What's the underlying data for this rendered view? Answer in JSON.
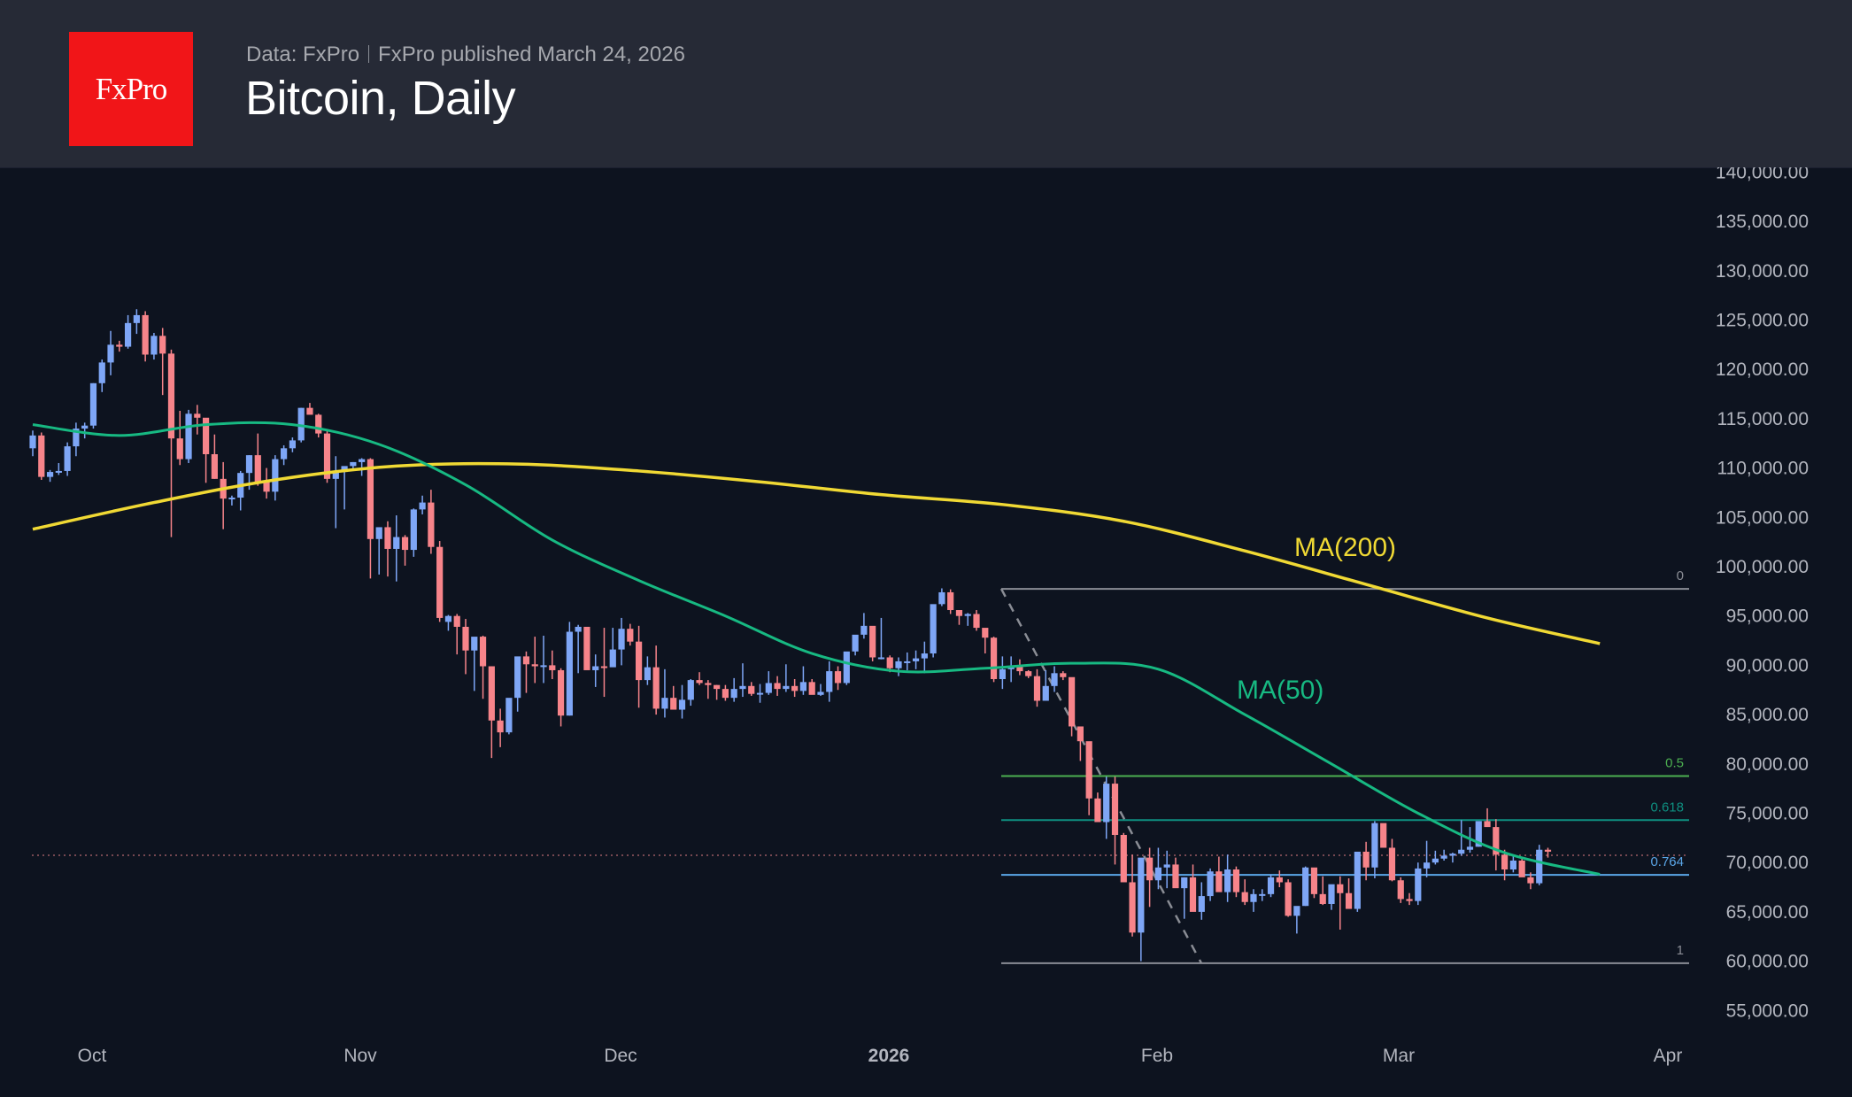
{
  "header": {
    "logo_text": "FxPro",
    "data_source": "Data: FxPro",
    "published": "FxPro published March 24, 2026",
    "title": "Bitcoin, Daily"
  },
  "colors": {
    "background": "#0d131f",
    "header_bg": "#262a36",
    "logo_red": "#f11518",
    "up_candle": "#7ea6f6",
    "down_candle": "#f7848a",
    "ma50": "#17b982",
    "ma200": "#f0d934",
    "fib_0": "#8a8d95",
    "fib_0_5": "#4caf50",
    "fib_0_618": "#0e8f80",
    "fib_0_764": "#5aa6e8",
    "fib_1": "#8a8d95",
    "axis_text": "#b2b5be"
  },
  "chart_data": {
    "type": "candlestick",
    "title": "Bitcoin, Daily",
    "xlabel": "",
    "ylabel": "",
    "x_ticks": [
      "Oct",
      "Nov",
      "Dec",
      "2026",
      "Feb",
      "Mar",
      "Apr"
    ],
    "y_ticks": [
      "55,000.00",
      "60,000.00",
      "65,000.00",
      "70,000.00",
      "75,000.00",
      "80,000.00",
      "85,000.00",
      "90,000.00",
      "95,000.00",
      "100,000.00",
      "105,000.00",
      "110,000.00",
      "115,000.00",
      "120,000.00",
      "125,000.00",
      "130,000.00",
      "135,000.00",
      "140,000.00"
    ],
    "ylim": [
      52000,
      140500
    ],
    "start_date": "2025-09-24",
    "end_date": "2026-03-24",
    "ohlc_note": "[open, high, low, close] per day in USD, starting 2025-09-24",
    "candles": [
      [
        112.0,
        113.8,
        111.2,
        113.3
      ],
      [
        113.3,
        113.6,
        108.8,
        109.1
      ],
      [
        109.1,
        109.8,
        108.6,
        109.6
      ],
      [
        109.6,
        110.5,
        109.3,
        109.7
      ],
      [
        109.7,
        112.6,
        109.2,
        112.2
      ],
      [
        112.2,
        114.6,
        111.2,
        114.0
      ],
      [
        114.0,
        114.6,
        113.0,
        114.3
      ],
      [
        114.3,
        118.6,
        114.0,
        118.6
      ],
      [
        118.6,
        121.0,
        117.7,
        120.7
      ],
      [
        120.7,
        123.9,
        119.4,
        122.5
      ],
      [
        122.5,
        122.9,
        121.8,
        122.3
      ],
      [
        122.3,
        125.5,
        122.1,
        124.7
      ],
      [
        124.7,
        126.1,
        123.6,
        125.5
      ],
      [
        125.5,
        125.9,
        120.8,
        121.5
      ],
      [
        121.5,
        123.7,
        121.0,
        123.4
      ],
      [
        123.4,
        124.2,
        117.4,
        121.6
      ],
      [
        121.6,
        122.0,
        103.0,
        113.0
      ],
      [
        113.0,
        115.8,
        110.3,
        110.9
      ],
      [
        110.9,
        115.9,
        110.5,
        115.5
      ],
      [
        115.5,
        116.4,
        113.4,
        115.1
      ],
      [
        115.1,
        115.0,
        108.5,
        111.4
      ],
      [
        111.4,
        113.4,
        108.9,
        108.9
      ],
      [
        108.9,
        110.6,
        103.8,
        106.9
      ],
      [
        106.9,
        107.2,
        106.2,
        107.0
      ],
      [
        107.0,
        109.7,
        105.7,
        109.5
      ],
      [
        109.5,
        111.3,
        107.8,
        111.3
      ],
      [
        111.3,
        113.5,
        108.2,
        108.6
      ],
      [
        108.6,
        110.0,
        106.9,
        107.6
      ],
      [
        107.6,
        111.3,
        106.7,
        110.9
      ],
      [
        110.9,
        112.3,
        110.3,
        112.0
      ],
      [
        112.0,
        113.1,
        111.6,
        112.8
      ],
      [
        112.8,
        116.1,
        112.6,
        116.1
      ],
      [
        116.1,
        116.6,
        115.6,
        115.4
      ],
      [
        115.4,
        115.5,
        113.1,
        113.5
      ],
      [
        113.5,
        113.8,
        108.5,
        108.9
      ],
      [
        108.9,
        111.2,
        103.9,
        109.6
      ],
      [
        109.6,
        110.0,
        105.8,
        110.2
      ],
      [
        110.2,
        110.6,
        109.9,
        110.6
      ],
      [
        110.6,
        111.0,
        109.2,
        110.9
      ],
      [
        110.9,
        111.0,
        98.8,
        102.8
      ],
      [
        102.8,
        102.9,
        99.2,
        104.0
      ],
      [
        104.0,
        104.6,
        99.0,
        101.8
      ],
      [
        101.8,
        105.2,
        98.5,
        103.0
      ],
      [
        103.0,
        103.2,
        100.1,
        101.7
      ],
      [
        101.7,
        105.9,
        101.0,
        105.8
      ],
      [
        105.8,
        107.2,
        105.3,
        106.5
      ],
      [
        106.5,
        107.8,
        101.3,
        102.0
      ],
      [
        102.0,
        102.6,
        94.4,
        94.8
      ],
      [
        94.4,
        95.1,
        93.5,
        95.0
      ],
      [
        95.0,
        95.2,
        91.1,
        93.9
      ],
      [
        93.9,
        94.7,
        89.1,
        91.5
      ],
      [
        91.5,
        92.1,
        87.4,
        92.9
      ],
      [
        92.9,
        93.0,
        86.6,
        89.9
      ],
      [
        89.9,
        89.9,
        80.6,
        84.4
      ],
      [
        84.4,
        85.6,
        81.7,
        83.2
      ],
      [
        83.2,
        86.3,
        83.0,
        86.7
      ],
      [
        86.7,
        89.0,
        85.3,
        90.9
      ],
      [
        90.9,
        91.4,
        87.2,
        90.1
      ],
      [
        90.1,
        92.9,
        88.2,
        89.9
      ],
      [
        89.9,
        93.0,
        88.2,
        90.0
      ],
      [
        90.0,
        91.5,
        88.6,
        89.5
      ],
      [
        89.5,
        89.7,
        83.8,
        84.9
      ],
      [
        84.9,
        94.4,
        84.9,
        93.4
      ],
      [
        93.4,
        94.1,
        89.2,
        93.9
      ],
      [
        93.9,
        93.8,
        89.7,
        89.5
      ],
      [
        89.5,
        91.1,
        87.8,
        89.9
      ],
      [
        89.9,
        93.8,
        86.8,
        89.8
      ],
      [
        89.8,
        93.8,
        90.9,
        91.6
      ],
      [
        91.6,
        94.8,
        90.0,
        93.7
      ],
      [
        93.7,
        94.2,
        92.0,
        92.4
      ],
      [
        92.4,
        94.0,
        85.7,
        88.5
      ],
      [
        88.5,
        90.9,
        88.0,
        89.8
      ],
      [
        89.8,
        92.0,
        85.0,
        85.6
      ],
      [
        85.6,
        89.6,
        84.7,
        86.7
      ],
      [
        86.7,
        87.9,
        85.7,
        85.5
      ],
      [
        85.5,
        88.0,
        84.6,
        86.5
      ],
      [
        86.5,
        88.6,
        85.9,
        88.5
      ],
      [
        88.5,
        89.3,
        88.0,
        88.2
      ],
      [
        88.2,
        88.5,
        86.6,
        88.0
      ],
      [
        88.0,
        88.0,
        86.5,
        87.6
      ],
      [
        87.6,
        88.0,
        86.4,
        86.7
      ],
      [
        86.7,
        88.7,
        86.3,
        87.6
      ],
      [
        87.6,
        90.2,
        86.8,
        87.9
      ],
      [
        87.9,
        88.3,
        86.9,
        87.1
      ],
      [
        87.1,
        88.1,
        86.2,
        87.2
      ],
      [
        87.2,
        89.4,
        87.0,
        88.2
      ],
      [
        88.2,
        88.9,
        86.9,
        87.6
      ],
      [
        87.6,
        90.1,
        87.3,
        87.9
      ],
      [
        87.9,
        88.6,
        86.8,
        87.4
      ],
      [
        87.4,
        89.9,
        87.0,
        88.3
      ],
      [
        88.3,
        88.6,
        87.1,
        87.0
      ],
      [
        87.0,
        88.1,
        86.9,
        87.3
      ],
      [
        87.3,
        90.4,
        86.3,
        89.4
      ],
      [
        89.4,
        89.9,
        87.5,
        88.2
      ],
      [
        88.2,
        90.9,
        88.0,
        91.4
      ],
      [
        91.4,
        92.4,
        91.0,
        93.1
      ],
      [
        93.1,
        95.3,
        92.7,
        94.0
      ],
      [
        94.0,
        93.8,
        90.4,
        90.8
      ],
      [
        90.8,
        94.8,
        90.6,
        90.8
      ],
      [
        90.8,
        91.0,
        89.3,
        89.7
      ],
      [
        89.7,
        90.8,
        88.9,
        90.4
      ],
      [
        90.4,
        91.3,
        89.5,
        90.4
      ],
      [
        90.4,
        91.5,
        89.6,
        90.7
      ],
      [
        90.7,
        92.4,
        89.2,
        91.2
      ],
      [
        91.2,
        96.1,
        90.8,
        96.2
      ],
      [
        96.2,
        97.8,
        96.0,
        97.4
      ],
      [
        97.4,
        97.7,
        95.2,
        95.6
      ],
      [
        95.6,
        95.4,
        94.1,
        95.0
      ],
      [
        95.0,
        95.3,
        94.0,
        95.2
      ],
      [
        95.2,
        95.6,
        93.5,
        93.8
      ],
      [
        93.8,
        93.2,
        91.2,
        92.8
      ],
      [
        92.8,
        92.9,
        88.3,
        88.6
      ],
      [
        88.6,
        90.9,
        87.6,
        89.6
      ],
      [
        89.6,
        90.9,
        88.3,
        89.9
      ],
      [
        89.9,
        90.6,
        89.0,
        89.4
      ],
      [
        89.4,
        89.5,
        88.7,
        88.9
      ],
      [
        88.9,
        89.6,
        85.8,
        86.4
      ],
      [
        86.4,
        89.5,
        86.6,
        87.9
      ],
      [
        87.9,
        89.9,
        87.3,
        89.2
      ],
      [
        89.2,
        89.4,
        88.5,
        88.8
      ],
      [
        88.8,
        88.7,
        82.8,
        83.8
      ],
      [
        83.8,
        83.7,
        80.3,
        82.3
      ],
      [
        82.3,
        82.0,
        74.8,
        76.5
      ],
      [
        76.5,
        77.1,
        74.4,
        74.1
      ],
      [
        74.1,
        78.7,
        72.4,
        78.0
      ],
      [
        78.0,
        78.7,
        69.8,
        72.8
      ],
      [
        72.8,
        73.0,
        69.2,
        68.0
      ],
      [
        68.0,
        70.8,
        62.5,
        62.9
      ],
      [
        62.9,
        70.2,
        60.0,
        70.5
      ],
      [
        70.5,
        71.5,
        65.5,
        68.2
      ],
      [
        68.2,
        71.5,
        67.3,
        69.5
      ],
      [
        69.5,
        71.2,
        67.4,
        69.8
      ],
      [
        69.8,
        70.5,
        68.0,
        67.4
      ],
      [
        67.4,
        68.5,
        64.3,
        68.5
      ],
      [
        68.5,
        69.8,
        66.3,
        65.0
      ],
      [
        65.0,
        68.0,
        64.2,
        66.6
      ],
      [
        66.6,
        69.4,
        66.1,
        69.1
      ],
      [
        69.1,
        70.6,
        67.5,
        67.0
      ],
      [
        67.0,
        70.8,
        66.0,
        69.3
      ],
      [
        69.3,
        69.6,
        66.5,
        67.0
      ],
      [
        67.0,
        68.3,
        65.7,
        66.0
      ],
      [
        66.0,
        67.3,
        65.0,
        66.8
      ],
      [
        66.8,
        67.3,
        66.1,
        66.8
      ],
      [
        66.8,
        68.8,
        66.5,
        68.5
      ],
      [
        68.5,
        69.2,
        67.5,
        68.0
      ],
      [
        68.0,
        68.3,
        64.5,
        64.6
      ],
      [
        64.6,
        65.5,
        62.8,
        65.6
      ],
      [
        65.6,
        69.6,
        65.6,
        69.5
      ],
      [
        69.5,
        68.8,
        66.4,
        66.8
      ],
      [
        66.8,
        68.6,
        65.7,
        65.8
      ],
      [
        65.8,
        67.4,
        65.2,
        67.8
      ],
      [
        67.8,
        68.6,
        63.2,
        66.9
      ],
      [
        66.9,
        68.4,
        65.4,
        65.3
      ],
      [
        65.3,
        71.0,
        65.0,
        71.1
      ],
      [
        71.1,
        72.1,
        68.2,
        69.5
      ],
      [
        69.5,
        74.2,
        68.4,
        74.0
      ],
      [
        74.0,
        73.6,
        71.7,
        71.5
      ],
      [
        71.5,
        72.4,
        68.1,
        68.2
      ],
      [
        68.2,
        68.5,
        65.9,
        66.3
      ],
      [
        66.3,
        66.9,
        65.7,
        66.1
      ],
      [
        66.1,
        70.0,
        65.7,
        69.4
      ],
      [
        69.4,
        72.2,
        68.5,
        70.0
      ],
      [
        70.0,
        71.2,
        69.8,
        70.4
      ],
      [
        70.4,
        71.3,
        70.2,
        70.7
      ],
      [
        70.7,
        71.0,
        70.0,
        70.9
      ],
      [
        70.9,
        74.3,
        70.7,
        71.3
      ],
      [
        71.3,
        73.6,
        71.0,
        71.6
      ],
      [
        71.6,
        73.3,
        71.6,
        74.2
      ],
      [
        74.2,
        75.5,
        73.7,
        73.6
      ],
      [
        73.6,
        74.4,
        69.2,
        70.8
      ],
      [
        70.8,
        71.3,
        68.2,
        69.3
      ],
      [
        69.3,
        70.7,
        69.0,
        70.2
      ],
      [
        70.2,
        70.5,
        68.9,
        68.5
      ],
      [
        68.5,
        69.0,
        67.3,
        67.9
      ],
      [
        67.9,
        71.8,
        67.7,
        71.3
      ],
      [
        71.3,
        71.5,
        70.5,
        71.1
      ]
    ],
    "series": [
      {
        "name": "MA(200)",
        "label": "MA(200)",
        "values_note": "slowly rising to ~110.5k mid-Nov then declining to ~92k by Mar 24"
      },
      {
        "name": "MA(50)",
        "label": "MA(50)",
        "values_note": "~114k in Oct, falling to ~89k in Jan, ~69k by Mar 24"
      }
    ],
    "ma200_points": [
      [
        0,
        103.8
      ],
      [
        14,
        106.5
      ],
      [
        28,
        108.8
      ],
      [
        42,
        110.2
      ],
      [
        56,
        110.4
      ],
      [
        70,
        109.7
      ],
      [
        84,
        108.6
      ],
      [
        98,
        107.3
      ],
      [
        112,
        106.3
      ],
      [
        126,
        104.6
      ],
      [
        140,
        101.6
      ],
      [
        154,
        98.2
      ],
      [
        168,
        94.8
      ],
      [
        181,
        92.2
      ]
    ],
    "ma50_points": [
      [
        0,
        114.4
      ],
      [
        10,
        113.3
      ],
      [
        20,
        114.4
      ],
      [
        30,
        114.4
      ],
      [
        40,
        112.4
      ],
      [
        50,
        108.3
      ],
      [
        60,
        102.7
      ],
      [
        70,
        98.6
      ],
      [
        80,
        95.0
      ],
      [
        90,
        91.2
      ],
      [
        100,
        89.4
      ],
      [
        110,
        89.7
      ],
      [
        120,
        90.2
      ],
      [
        130,
        89.6
      ],
      [
        140,
        85.0
      ],
      [
        150,
        80.0
      ],
      [
        160,
        75.0
      ],
      [
        170,
        71.0
      ],
      [
        181,
        68.8
      ]
    ],
    "fibonacci": {
      "start_index": 110,
      "end_index": 133,
      "high": 97750,
      "low": 59800,
      "levels": [
        {
          "ratio": "0",
          "price": 97750
        },
        {
          "ratio": "0.5",
          "price": 78775
        },
        {
          "ratio": "0.618",
          "price": 74300
        },
        {
          "ratio": "0.764",
          "price": 68750
        },
        {
          "ratio": "1",
          "price": 59800
        }
      ]
    },
    "current_price_line": 71000,
    "annotations": [
      {
        "text": "MA(200)",
        "color": "#f0d934"
      },
      {
        "text": "MA(50)",
        "color": "#17b982"
      }
    ]
  }
}
